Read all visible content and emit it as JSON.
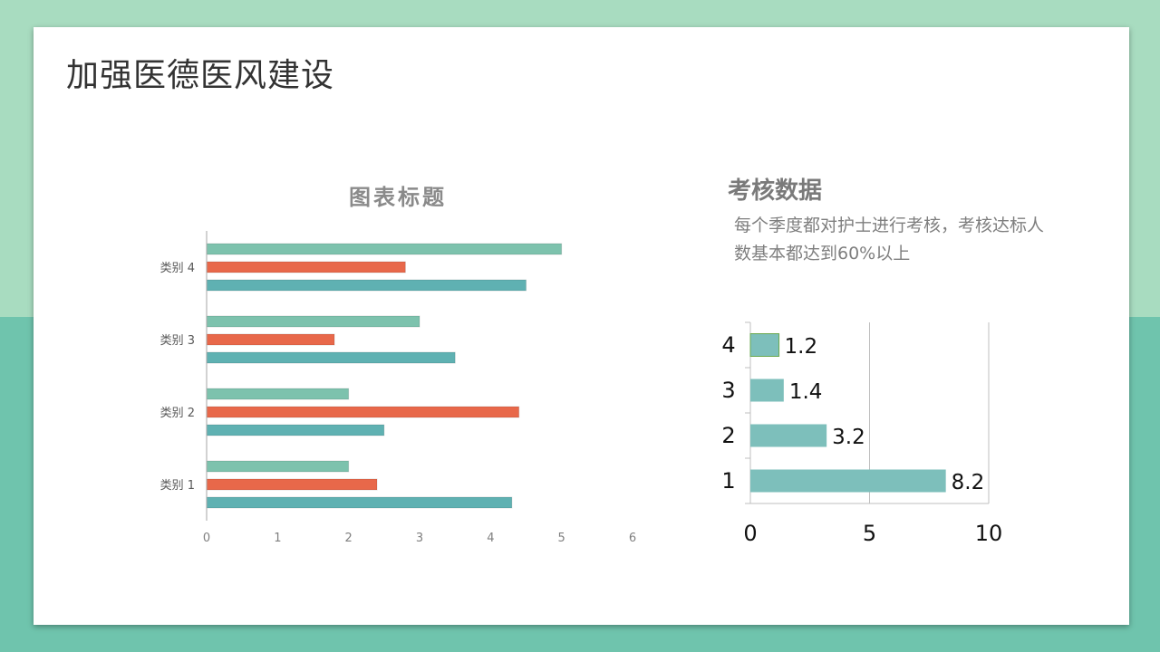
{
  "slide": {
    "title": "加强医德医风建设",
    "side_heading": "考核数据",
    "side_description": "每个季度都对护士进行考核，考核达标人数基本都达到60%以上"
  },
  "colors": {
    "background_top": "#a8dcc0",
    "background_bottom": "#6fc4ad",
    "series_mint": "#7dc2ad",
    "series_orange": "#e8684a",
    "series_teal": "#5fb1b2",
    "right_bar": "#7dbfbb"
  },
  "chart_data": [
    {
      "type": "bar",
      "orientation": "horizontal",
      "title": "图表标题",
      "categories": [
        "类别 1",
        "类别 2",
        "类别 3",
        "类别 4"
      ],
      "series": [
        {
          "values": [
            4.3,
            2.5,
            3.5,
            4.5
          ],
          "color": "#5fb1b2"
        },
        {
          "values": [
            2.4,
            4.4,
            1.8,
            2.8
          ],
          "color": "#e8684a"
        },
        {
          "values": [
            2.0,
            2.0,
            3.0,
            5.0
          ],
          "color": "#7dc2ad"
        }
      ],
      "xticks": [
        "0",
        "1",
        "2",
        "3",
        "4",
        "5",
        "6"
      ],
      "xlim": [
        0,
        6
      ],
      "grid": false,
      "legend": "none"
    },
    {
      "type": "bar",
      "orientation": "horizontal",
      "categories": [
        "1",
        "2",
        "3",
        "4"
      ],
      "values": [
        8.2,
        3.2,
        1.4,
        1.2
      ],
      "data_labels": [
        "8.2",
        "3.2",
        "1.4",
        "1.2"
      ],
      "xticks": [
        "0",
        "5",
        "10"
      ],
      "xlim": [
        0,
        10
      ],
      "grid": true,
      "legend": "none"
    }
  ]
}
